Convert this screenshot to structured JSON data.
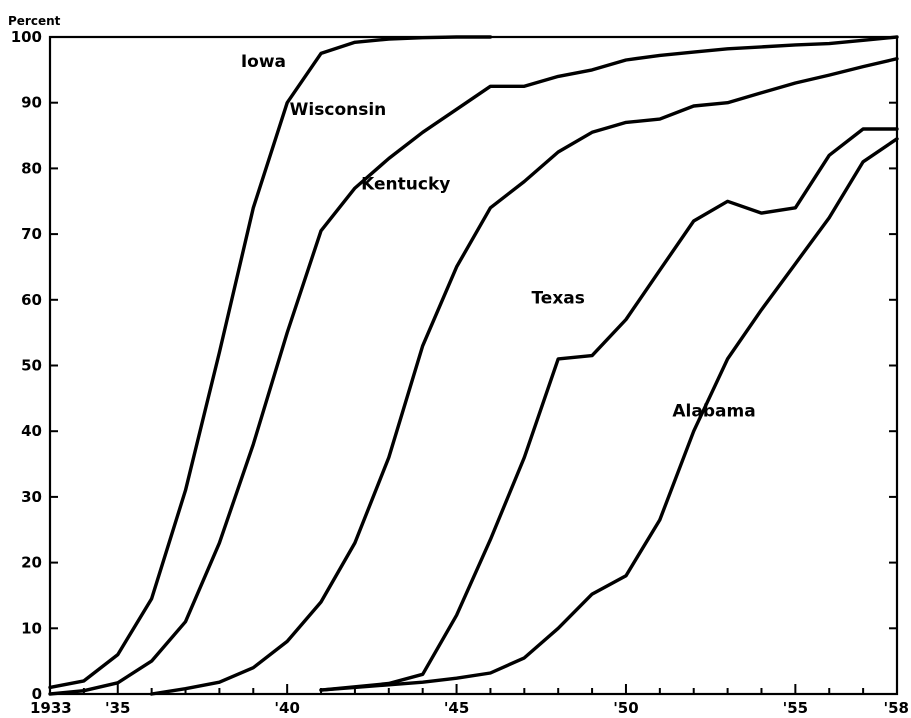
{
  "chart_data": {
    "type": "line",
    "title": "",
    "xlabel": "",
    "ylabel": "Percent",
    "xlim": [
      1933,
      1958
    ],
    "ylim": [
      0,
      100
    ],
    "grid": false,
    "legend": "none",
    "line_color": "#000000",
    "x_ticks": [
      {
        "value": 1933,
        "label": "1933"
      },
      {
        "value": 1935,
        "label": "'35"
      },
      {
        "value": 1940,
        "label": "'40"
      },
      {
        "value": 1945,
        "label": "'45"
      },
      {
        "value": 1950,
        "label": "'50"
      },
      {
        "value": 1955,
        "label": "'55"
      },
      {
        "value": 1958,
        "label": "'58"
      }
    ],
    "y_ticks": [
      {
        "value": 0,
        "label": "0"
      },
      {
        "value": 10,
        "label": "10"
      },
      {
        "value": 20,
        "label": "20"
      },
      {
        "value": 30,
        "label": "30"
      },
      {
        "value": 40,
        "label": "40"
      },
      {
        "value": 50,
        "label": "50"
      },
      {
        "value": 60,
        "label": "60"
      },
      {
        "value": 70,
        "label": "70"
      },
      {
        "value": 80,
        "label": "80"
      },
      {
        "value": 90,
        "label": "90"
      },
      {
        "value": 100,
        "label": "100"
      }
    ],
    "series": [
      {
        "name": "Iowa",
        "label_anchor": [
          1939.3,
          95.4
        ],
        "points": [
          [
            1933,
            1
          ],
          [
            1934,
            2
          ],
          [
            1935,
            6
          ],
          [
            1936,
            14.5
          ],
          [
            1937,
            31
          ],
          [
            1938,
            52
          ],
          [
            1939,
            74
          ],
          [
            1940,
            90
          ],
          [
            1941,
            97.5
          ],
          [
            1942,
            99.2
          ],
          [
            1943,
            99.7
          ],
          [
            1944,
            99.9
          ],
          [
            1945,
            100
          ],
          [
            1946,
            100
          ]
        ]
      },
      {
        "name": "Wisconsin",
        "label_anchor": [
          1941.5,
          88.1
        ],
        "points": [
          [
            1933,
            0
          ],
          [
            1934,
            0.5
          ],
          [
            1935,
            1.7
          ],
          [
            1936,
            5
          ],
          [
            1937,
            11
          ],
          [
            1938,
            23
          ],
          [
            1939,
            38
          ],
          [
            1940,
            55
          ],
          [
            1941,
            70.5
          ],
          [
            1942,
            77
          ],
          [
            1943,
            81.5
          ],
          [
            1944,
            85.5
          ],
          [
            1945,
            89
          ],
          [
            1946,
            92.5
          ],
          [
            1947,
            92.5
          ],
          [
            1948,
            94
          ],
          [
            1949,
            95
          ],
          [
            1950,
            96.5
          ],
          [
            1951,
            97.2
          ],
          [
            1952,
            97.7
          ],
          [
            1953,
            98.2
          ],
          [
            1954,
            98.5
          ],
          [
            1955,
            98.8
          ],
          [
            1956,
            99
          ],
          [
            1957,
            99.5
          ],
          [
            1958,
            100
          ]
        ]
      },
      {
        "name": "Kentucky",
        "label_anchor": [
          1943.5,
          76.8
        ],
        "points": [
          [
            1936,
            0
          ],
          [
            1937,
            0.8
          ],
          [
            1938,
            1.8
          ],
          [
            1939,
            4
          ],
          [
            1940,
            8
          ],
          [
            1941,
            14
          ],
          [
            1942,
            23
          ],
          [
            1943,
            36
          ],
          [
            1944,
            53
          ],
          [
            1945,
            65
          ],
          [
            1946,
            74
          ],
          [
            1947,
            78
          ],
          [
            1948,
            82.5
          ],
          [
            1949,
            85.5
          ],
          [
            1950,
            87
          ],
          [
            1951,
            87.5
          ],
          [
            1952,
            89.5
          ],
          [
            1953,
            90
          ],
          [
            1954,
            91.5
          ],
          [
            1955,
            93
          ],
          [
            1956,
            94.2
          ],
          [
            1957,
            95.5
          ],
          [
            1958,
            96.7
          ]
        ]
      },
      {
        "name": "Texas",
        "label_anchor": [
          1948,
          59.4
        ],
        "points": [
          [
            1941,
            0.6
          ],
          [
            1942,
            1.1
          ],
          [
            1943,
            1.6
          ],
          [
            1944,
            3
          ],
          [
            1945,
            12
          ],
          [
            1946,
            23.5
          ],
          [
            1947,
            36
          ],
          [
            1948,
            51
          ],
          [
            1949,
            51.5
          ],
          [
            1950,
            57
          ],
          [
            1951,
            64.5
          ],
          [
            1952,
            72
          ],
          [
            1953,
            75
          ],
          [
            1954,
            73.2
          ],
          [
            1955,
            74
          ],
          [
            1956,
            82
          ],
          [
            1957,
            86
          ],
          [
            1958,
            86
          ]
        ]
      },
      {
        "name": "Alabama",
        "label_anchor": [
          1952.6,
          42.2
        ],
        "points": [
          [
            1941,
            0.6
          ],
          [
            1942,
            1
          ],
          [
            1943,
            1.4
          ],
          [
            1944,
            1.8
          ],
          [
            1945,
            2.4
          ],
          [
            1946,
            3.2
          ],
          [
            1947,
            5.5
          ],
          [
            1948,
            10
          ],
          [
            1949,
            15.2
          ],
          [
            1950,
            18
          ],
          [
            1951,
            26.5
          ],
          [
            1952,
            40
          ],
          [
            1953,
            51
          ],
          [
            1954,
            58.5
          ],
          [
            1955,
            65.5
          ],
          [
            1956,
            72.5
          ],
          [
            1957,
            81
          ],
          [
            1958,
            84.5
          ]
        ]
      }
    ]
  }
}
